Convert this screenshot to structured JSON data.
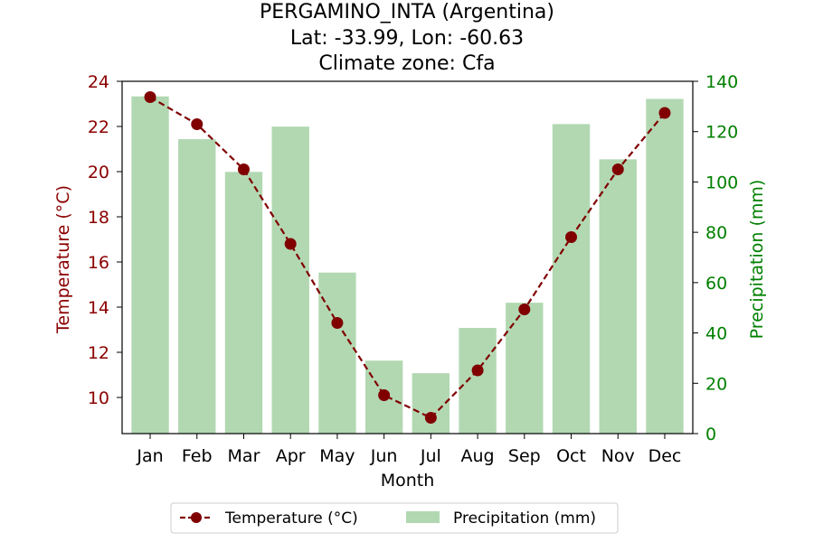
{
  "chart_data": {
    "type": "bar+line",
    "title_lines": [
      "PERGAMINO_INTA (Argentina)",
      "Lat: -33.99, Lon: -60.63",
      "Climate zone: Cfa"
    ],
    "categories": [
      "Jan",
      "Feb",
      "Mar",
      "Apr",
      "May",
      "Jun",
      "Jul",
      "Aug",
      "Sep",
      "Oct",
      "Nov",
      "Dec"
    ],
    "xlabel": "Month",
    "series": [
      {
        "name": "Temperature (°C)",
        "kind": "line",
        "axis": "left",
        "color": "#800000",
        "values": [
          23.3,
          22.1,
          20.1,
          16.8,
          13.3,
          10.1,
          9.1,
          11.2,
          13.9,
          17.1,
          20.1,
          22.6
        ]
      },
      {
        "name": "Precipitation (mm)",
        "kind": "bar",
        "axis": "right",
        "color": "#b2d8b2",
        "values": [
          134,
          117,
          104,
          122,
          64,
          29,
          24,
          42,
          52,
          123,
          109,
          133
        ]
      }
    ],
    "y_left": {
      "label": "Temperature (°C)",
      "range": [
        8.4,
        24.0
      ],
      "ticks": [
        10,
        12,
        14,
        16,
        18,
        20,
        22,
        24
      ],
      "color": "#8b0000"
    },
    "y_right": {
      "label": "Precipitation (mm)",
      "range": [
        0,
        140
      ],
      "ticks": [
        0,
        20,
        40,
        60,
        80,
        100,
        120,
        140
      ],
      "color": "#008000"
    },
    "legend_position": "bottom-center",
    "grid": false
  }
}
